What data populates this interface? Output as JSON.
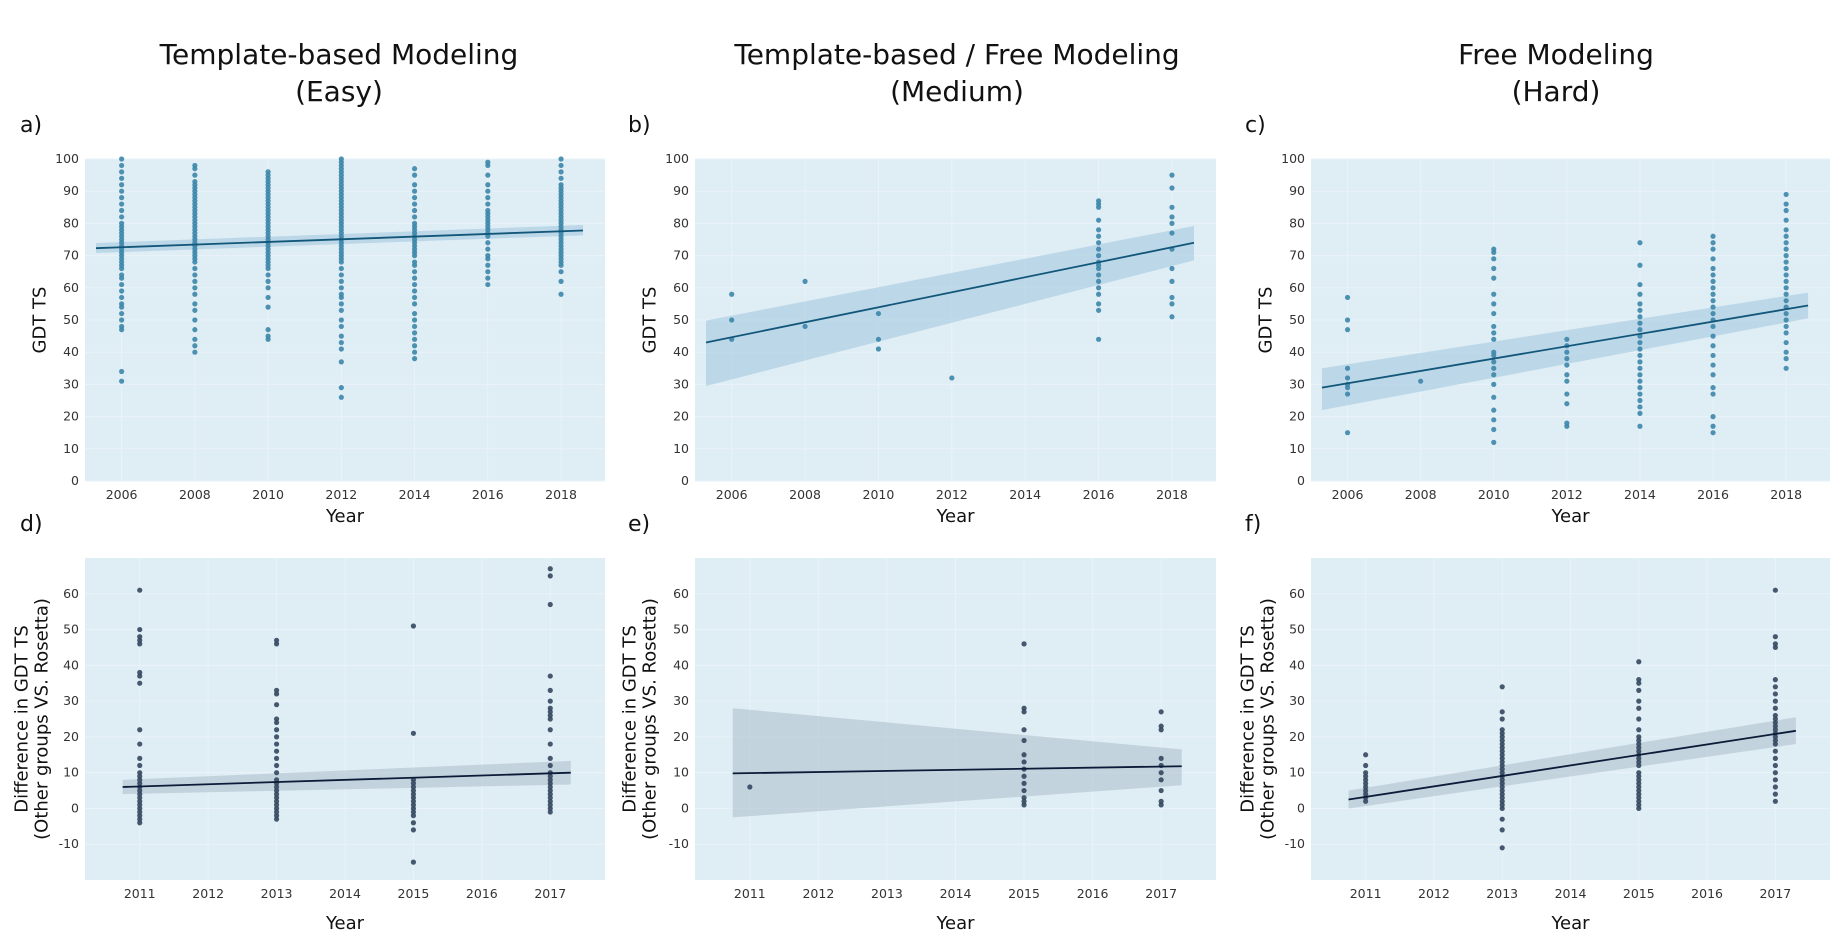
{
  "figure": {
    "column_titles": [
      {
        "line1": "Template-based Modeling",
        "line2": "(Easy)"
      },
      {
        "line1": "Template-based / Free Modeling",
        "line2": "(Medium)"
      },
      {
        "line1": "Free Modeling",
        "line2": "(Hard)"
      }
    ],
    "colors": {
      "plot_bg": "#dfedf5",
      "top_points": "#3c86aa",
      "top_line": "#12577a",
      "top_band": "#a9cde0",
      "bottom_points": "#33475f",
      "bottom_line": "#0b1b38",
      "bottom_band": "#b3c4d1"
    }
  },
  "chart_data": [
    {
      "panel": "a)",
      "type": "scatter",
      "xlabel": "Year",
      "ylabel": "GDT TS",
      "xlim": [
        2005,
        2019.2
      ],
      "ylim": [
        0,
        100
      ],
      "xticks": [
        2006,
        2008,
        2010,
        2012,
        2014,
        2016,
        2018
      ],
      "yticks": [
        0,
        10,
        20,
        30,
        40,
        50,
        60,
        70,
        80,
        90,
        100
      ],
      "series": [
        {
          "x": 2006,
          "y": [
            31,
            34,
            47,
            48,
            50,
            52,
            54,
            55,
            57,
            59,
            61,
            63,
            64,
            66,
            67,
            68,
            69,
            70,
            71,
            72,
            73,
            74,
            75,
            76,
            77,
            78,
            79,
            80,
            82,
            84,
            86,
            88,
            90,
            92,
            94,
            96,
            98,
            100
          ]
        },
        {
          "x": 2008,
          "y": [
            40,
            42,
            44,
            47,
            50,
            53,
            55,
            58,
            60,
            62,
            64,
            66,
            68,
            69,
            70,
            71,
            72,
            73,
            74,
            75,
            76,
            77,
            78,
            79,
            80,
            81,
            82,
            83,
            84,
            85,
            86,
            87,
            88,
            89,
            90,
            91,
            92,
            93,
            95,
            97,
            98
          ]
        },
        {
          "x": 2010,
          "y": [
            44,
            45,
            47,
            54,
            57,
            60,
            62,
            64,
            66,
            67,
            68,
            69,
            70,
            71,
            72,
            73,
            74,
            75,
            76,
            77,
            78,
            79,
            80,
            81,
            82,
            83,
            84,
            85,
            86,
            87,
            88,
            89,
            90,
            91,
            92,
            93,
            94,
            95,
            96
          ]
        },
        {
          "x": 2012,
          "y": [
            26,
            29,
            37,
            41,
            43,
            45,
            48,
            50,
            53,
            55,
            57,
            58,
            60,
            62,
            64,
            66,
            68,
            69,
            70,
            71,
            72,
            73,
            74,
            75,
            76,
            77,
            78,
            79,
            80,
            81,
            82,
            83,
            84,
            85,
            86,
            87,
            88,
            89,
            90,
            91,
            92,
            93,
            94,
            95,
            96,
            97,
            98,
            99,
            100
          ]
        },
        {
          "x": 2014,
          "y": [
            38,
            40,
            42,
            44,
            46,
            48,
            50,
            52,
            55,
            57,
            59,
            61,
            63,
            65,
            67,
            68,
            70,
            71,
            72,
            73,
            74,
            75,
            76,
            77,
            78,
            79,
            80,
            82,
            84,
            86,
            88,
            90,
            92,
            95,
            97
          ]
        },
        {
          "x": 2016,
          "y": [
            61,
            63,
            65,
            67,
            69,
            70,
            72,
            74,
            76,
            77,
            78,
            79,
            80,
            81,
            82,
            83,
            84,
            86,
            88,
            90,
            92,
            95,
            98,
            99
          ]
        },
        {
          "x": 2018,
          "y": [
            58,
            62,
            65,
            67,
            68,
            69,
            70,
            71,
            72,
            73,
            74,
            75,
            76,
            77,
            78,
            79,
            80,
            81,
            82,
            83,
            84,
            85,
            86,
            87,
            88,
            89,
            90,
            91,
            92,
            94,
            96,
            98,
            100
          ]
        }
      ],
      "fit": {
        "x": [
          2005.3,
          2018.6
        ],
        "y": [
          72.3,
          77.8
        ],
        "band_lo": [
          70.8,
          76.3
        ],
        "band_hi": [
          73.9,
          79.5
        ]
      }
    },
    {
      "panel": "b)",
      "type": "scatter",
      "xlabel": "Year",
      "ylabel": "GDT TS",
      "xlim": [
        2005,
        2019.2
      ],
      "ylim": [
        0,
        100
      ],
      "xticks": [
        2006,
        2008,
        2010,
        2012,
        2014,
        2016,
        2018
      ],
      "yticks": [
        0,
        10,
        20,
        30,
        40,
        50,
        60,
        70,
        80,
        90,
        100
      ],
      "series": [
        {
          "x": 2006,
          "y": [
            44,
            50,
            58
          ]
        },
        {
          "x": 2008,
          "y": [
            48,
            62
          ]
        },
        {
          "x": 2010,
          "y": [
            41,
            44,
            52
          ]
        },
        {
          "x": 2012,
          "y": [
            32
          ]
        },
        {
          "x": 2016,
          "y": [
            44,
            53,
            55,
            58,
            60,
            62,
            64,
            66,
            67,
            68,
            70,
            72,
            74,
            76,
            78,
            81,
            85,
            86,
            87
          ]
        },
        {
          "x": 2018,
          "y": [
            51,
            55,
            57,
            62,
            66,
            72,
            77,
            80,
            82,
            85,
            91,
            95
          ]
        }
      ],
      "fit": {
        "x": [
          2005.3,
          2018.6
        ],
        "y": [
          43,
          74
        ],
        "band_lo": [
          29.5,
          68.5
        ],
        "band_hi": [
          49.8,
          79.2
        ]
      }
    },
    {
      "panel": "c)",
      "type": "scatter",
      "xlabel": "Year",
      "ylabel": "GDT TS",
      "xlim": [
        2005,
        2019.2
      ],
      "ylim": [
        0,
        100
      ],
      "xticks": [
        2006,
        2008,
        2010,
        2012,
        2014,
        2016,
        2018
      ],
      "yticks": [
        0,
        10,
        20,
        30,
        40,
        50,
        60,
        70,
        80,
        90,
        100
      ],
      "series": [
        {
          "x": 2006,
          "y": [
            15,
            27,
            29,
            30,
            32,
            35,
            47,
            50,
            57
          ]
        },
        {
          "x": 2008,
          "y": [
            31
          ]
        },
        {
          "x": 2010,
          "y": [
            12,
            16,
            19,
            22,
            26,
            30,
            33,
            35,
            37,
            39,
            40,
            44,
            46,
            48,
            52,
            55,
            58,
            63,
            66,
            69,
            71,
            72
          ]
        },
        {
          "x": 2012,
          "y": [
            17,
            18,
            24,
            27,
            31,
            33,
            36,
            38,
            40,
            42,
            44
          ]
        },
        {
          "x": 2014,
          "y": [
            17,
            21,
            23,
            25,
            27,
            29,
            31,
            33,
            35,
            37,
            39,
            41,
            43,
            45,
            47,
            49,
            51,
            53,
            55,
            58,
            61,
            67,
            74
          ]
        },
        {
          "x": 2016,
          "y": [
            15,
            17,
            20,
            27,
            29,
            33,
            36,
            39,
            42,
            45,
            48,
            50,
            52,
            54,
            56,
            58,
            60,
            62,
            64,
            66,
            69,
            72,
            74,
            76
          ]
        },
        {
          "x": 2018,
          "y": [
            35,
            38,
            40,
            43,
            46,
            48,
            50,
            52,
            54,
            56,
            58,
            60,
            62,
            64,
            66,
            68,
            70,
            72,
            74,
            76,
            78,
            81,
            84,
            86,
            89
          ]
        }
      ],
      "fit": {
        "x": [
          2005.3,
          2018.6
        ],
        "y": [
          29,
          54.5
        ],
        "band_lo": [
          22,
          50.5
        ],
        "band_hi": [
          35,
          58.5
        ]
      }
    },
    {
      "panel": "d)",
      "type": "scatter",
      "xlabel": "Year",
      "ylabel": "Difference in GDT TS",
      "ylabel2": "(Other groups VS. Rosetta)",
      "xlim": [
        2010.2,
        2017.8
      ],
      "ylim": [
        -20,
        70
      ],
      "xticks": [
        2011,
        2012,
        2013,
        2014,
        2015,
        2016,
        2017
      ],
      "yticks": [
        -10,
        0,
        10,
        20,
        30,
        40,
        50,
        60
      ],
      "series": [
        {
          "x": 2011,
          "y": [
            -4,
            -3,
            -2,
            -1,
            0,
            1,
            2,
            3,
            4,
            5,
            6,
            7,
            8,
            9,
            10,
            12,
            14,
            18,
            22,
            35,
            37,
            38,
            46,
            47,
            48,
            50,
            61
          ]
        },
        {
          "x": 2013,
          "y": [
            -3,
            -2,
            -1,
            0,
            1,
            2,
            3,
            4,
            5,
            6,
            7,
            8,
            10,
            12,
            14,
            16,
            18,
            20,
            22,
            24,
            25,
            29,
            32,
            33,
            46,
            47
          ]
        },
        {
          "x": 2015,
          "y": [
            -15,
            -6,
            -4,
            -2,
            -1,
            0,
            1,
            2,
            3,
            4,
            5,
            6,
            7,
            8,
            21,
            51
          ]
        },
        {
          "x": 2017,
          "y": [
            -1,
            0,
            1,
            2,
            3,
            4,
            5,
            6,
            7,
            8,
            9,
            10,
            12,
            14,
            18,
            22,
            25,
            26,
            27,
            28,
            30,
            33,
            37,
            57,
            65,
            67
          ]
        }
      ],
      "fit": {
        "x": [
          2010.75,
          2017.3
        ],
        "y": [
          6,
          10
        ],
        "band_lo": [
          4,
          6.7
        ],
        "band_hi": [
          8,
          13.3
        ]
      }
    },
    {
      "panel": "e)",
      "type": "scatter",
      "xlabel": "Year",
      "ylabel": "Difference in GDT TS",
      "ylabel2": "(Other groups VS. Rosetta)",
      "xlim": [
        2010.2,
        2017.8
      ],
      "ylim": [
        -20,
        70
      ],
      "xticks": [
        2011,
        2012,
        2013,
        2014,
        2015,
        2016,
        2017
      ],
      "yticks": [
        -10,
        0,
        10,
        20,
        30,
        40,
        50,
        60
      ],
      "series": [
        {
          "x": 2011,
          "y": [
            6
          ]
        },
        {
          "x": 2015,
          "y": [
            1,
            2,
            3,
            5,
            7,
            9,
            11,
            13,
            15,
            19,
            22,
            27,
            28,
            46
          ]
        },
        {
          "x": 2017,
          "y": [
            1,
            2,
            5,
            8,
            10,
            12,
            14,
            22,
            23,
            27
          ]
        }
      ],
      "fit": {
        "x": [
          2010.75,
          2017.3
        ],
        "y": [
          9.8,
          11.8
        ],
        "band_lo": [
          -2.5,
          6.5
        ],
        "band_hi": [
          28,
          16.5
        ]
      }
    },
    {
      "panel": "f)",
      "type": "scatter",
      "xlabel": "Year",
      "ylabel": "Difference in GDT TS",
      "ylabel2": "(Other groups VS. Rosetta)",
      "xlim": [
        2010.2,
        2017.8
      ],
      "ylim": [
        -20,
        70
      ],
      "xticks": [
        2011,
        2012,
        2013,
        2014,
        2015,
        2016,
        2017
      ],
      "yticks": [
        -10,
        0,
        10,
        20,
        30,
        40,
        50,
        60
      ],
      "series": [
        {
          "x": 2011,
          "y": [
            2,
            3,
            4,
            5,
            6,
            7,
            8,
            9,
            10,
            12,
            15
          ]
        },
        {
          "x": 2013,
          "y": [
            -11,
            -6,
            -3,
            0,
            1,
            2,
            3,
            4,
            5,
            6,
            7,
            8,
            9,
            10,
            11,
            12,
            13,
            14,
            15,
            16,
            17,
            18,
            19,
            20,
            21,
            22,
            25,
            27,
            34
          ]
        },
        {
          "x": 2015,
          "y": [
            0,
            1,
            2,
            3,
            4,
            5,
            6,
            7,
            8,
            9,
            10,
            12,
            13,
            14,
            15,
            16,
            17,
            18,
            19,
            20,
            22,
            25,
            28,
            30,
            33,
            35,
            36,
            41
          ]
        },
        {
          "x": 2017,
          "y": [
            2,
            4,
            6,
            8,
            10,
            12,
            14,
            16,
            18,
            19,
            20,
            21,
            22,
            23,
            24,
            25,
            26,
            28,
            30,
            32,
            34,
            36,
            45,
            46,
            48,
            61
          ]
        }
      ],
      "fit": {
        "x": [
          2010.75,
          2017.3
        ],
        "y": [
          2.5,
          21.7
        ],
        "band_lo": [
          0,
          18
        ],
        "band_hi": [
          5,
          25.5
        ]
      }
    }
  ]
}
